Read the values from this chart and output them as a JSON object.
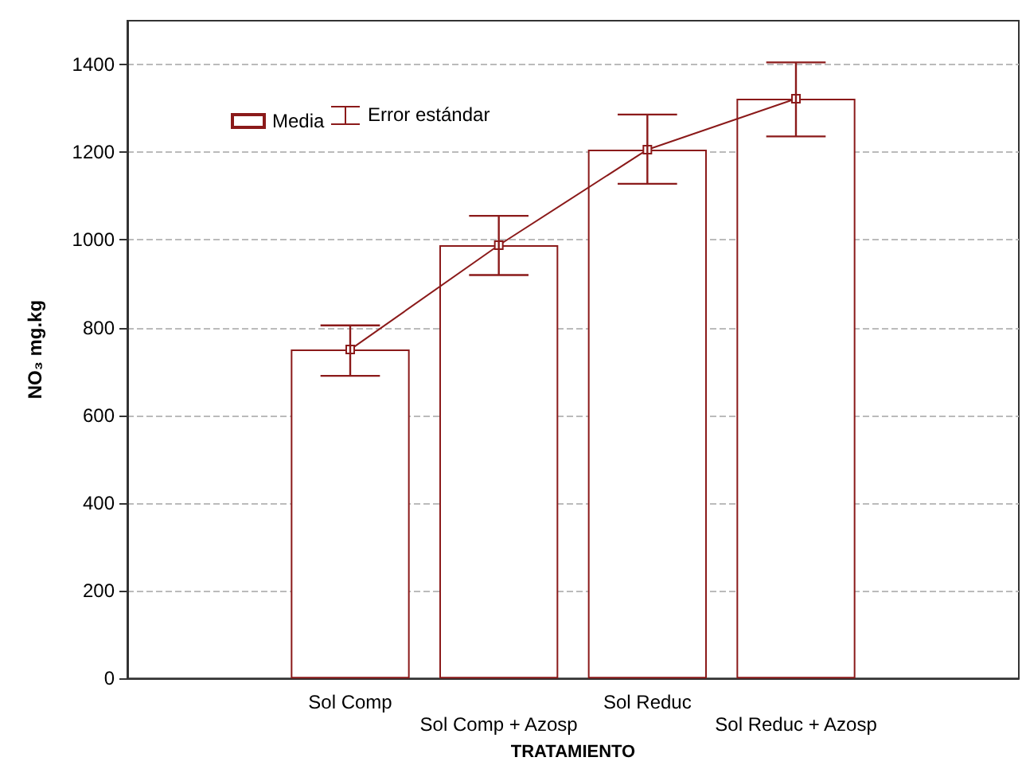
{
  "chart_data": {
    "type": "bar",
    "xlabel": "TRATAMIENTO",
    "ylabel": "NO₃ mg.kg",
    "categories": [
      null,
      "Sol Comp",
      "Sol Comp + Azosp",
      "Sol Reduc",
      "Sol Reduc + Azosp",
      null
    ],
    "series": [
      {
        "name": "Media",
        "color": "#8b1a1a",
        "values": [
          null,
          750,
          988,
          1206,
          1322,
          null
        ],
        "errors": [
          null,
          [
            690,
            805
          ],
          [
            920,
            1055
          ],
          [
            1128,
            1286
          ],
          [
            1236,
            1405
          ],
          null
        ]
      },
      {
        "type": "line",
        "color": "#8b1a1a",
        "values": [
          null,
          750,
          988,
          1206,
          1322,
          null
        ],
        "marker": "square"
      }
    ],
    "ylim": [
      0,
      1500
    ],
    "yticks": [
      0,
      200,
      400,
      600,
      800,
      1000,
      1200,
      1400
    ],
    "grid": "y",
    "legend": "top left",
    "annotations": [
      "Error estándar"
    ]
  }
}
